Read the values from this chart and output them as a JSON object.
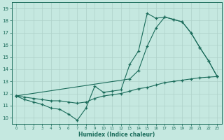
{
  "xlabel": "Humidex (Indice chaleur)",
  "xlim": [
    -0.5,
    23.5
  ],
  "ylim": [
    9.5,
    19.5
  ],
  "xticks": [
    0,
    1,
    2,
    3,
    4,
    5,
    6,
    7,
    8,
    9,
    10,
    11,
    12,
    13,
    14,
    15,
    16,
    17,
    18,
    19,
    20,
    21,
    22,
    23
  ],
  "yticks": [
    10,
    11,
    12,
    13,
    14,
    15,
    16,
    17,
    18,
    19
  ],
  "bg_color": "#c5e8e0",
  "line_color": "#1a6b5a",
  "grid_color": "#aed0c8",
  "line1_x": [
    0,
    1,
    2,
    3,
    4,
    5,
    6,
    7,
    8,
    9,
    10,
    11,
    12,
    13,
    14,
    15,
    16,
    17,
    18,
    19,
    20,
    21,
    22,
    23
  ],
  "line1_y": [
    11.8,
    11.5,
    11.3,
    11.1,
    10.8,
    10.7,
    10.3,
    9.8,
    10.8,
    12.6,
    12.1,
    12.2,
    12.3,
    14.4,
    15.5,
    18.6,
    18.2,
    18.3,
    18.1,
    17.9,
    17.0,
    15.8,
    14.7,
    13.4
  ],
  "line2_x": [
    0,
    13,
    14,
    15,
    16,
    17,
    18,
    19,
    20,
    21,
    22,
    23
  ],
  "line2_y": [
    11.8,
    13.2,
    13.9,
    15.9,
    17.4,
    18.3,
    18.1,
    17.9,
    17.0,
    15.8,
    14.7,
    13.4
  ],
  "line3_x": [
    0,
    1,
    2,
    3,
    4,
    5,
    6,
    7,
    8,
    9,
    10,
    11,
    12,
    13,
    14,
    15,
    16,
    17,
    18,
    19,
    20,
    21,
    22,
    23
  ],
  "line3_y": [
    11.8,
    11.7,
    11.6,
    11.5,
    11.4,
    11.4,
    11.3,
    11.2,
    11.3,
    11.6,
    11.8,
    11.9,
    12.0,
    12.2,
    12.4,
    12.5,
    12.7,
    12.9,
    13.0,
    13.1,
    13.2,
    13.3,
    13.35,
    13.4
  ]
}
